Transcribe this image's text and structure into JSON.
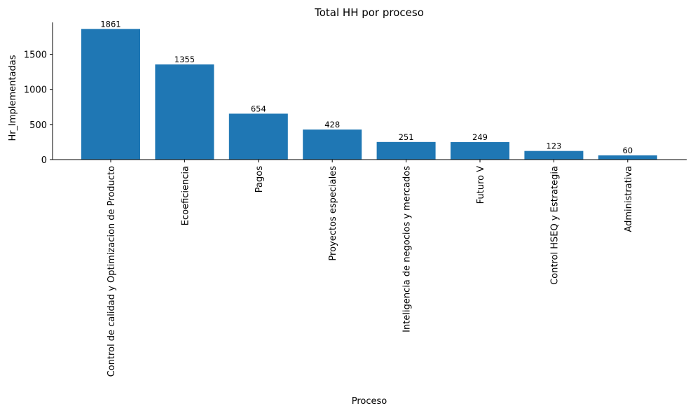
{
  "chart_data": {
    "type": "bar",
    "title": "Total HH por proceso",
    "xlabel": "Proceso",
    "ylabel": "Hr_Implementadas",
    "categories": [
      "Control de calidad y Optimizacion de Producto",
      "Ecoeficiencia",
      "Pagos",
      "Proyectos especiales",
      "Inteligencia de negocios y mercados",
      "Futuro V",
      "Control HSEQ y Estrategia",
      "Administrativa"
    ],
    "values": [
      1861,
      1355,
      654,
      428,
      251,
      249,
      123,
      60
    ],
    "data_labels": [
      "1861",
      "1355",
      "654",
      "428",
      "251",
      "249",
      "123",
      "60"
    ],
    "yticks": [
      0,
      500,
      1000,
      1500
    ],
    "ytick_labels": [
      "0",
      "500",
      "1000",
      "1500"
    ],
    "ylim": [
      0,
      1954
    ],
    "grid": false,
    "legend": "none",
    "bar_color": "#1f77b4"
  }
}
